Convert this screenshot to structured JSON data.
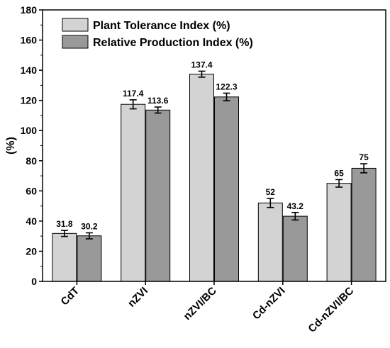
{
  "chart_data": {
    "type": "bar",
    "categories": [
      "CdT",
      "nZVI",
      "nZVI/BC",
      "Cd-nZVI",
      "Cd-nZVI/BC"
    ],
    "series": [
      {
        "name": "Plant Tolerance Index (%)",
        "color": "#d3d3d3",
        "values": [
          31.8,
          117.4,
          137.4,
          52,
          65
        ],
        "errors": [
          2,
          3,
          2,
          3,
          2.5
        ],
        "labels": [
          "31.8",
          "117.4",
          "137.4",
          "52",
          "65"
        ]
      },
      {
        "name": "Relative Production Index (%)",
        "color": "#999999",
        "values": [
          30.2,
          113.6,
          122.3,
          43.2,
          75
        ],
        "errors": [
          2,
          2,
          2.5,
          2.5,
          3
        ],
        "labels": [
          "30.2",
          "113.6",
          "122.3",
          "43.2",
          "75"
        ]
      }
    ],
    "ylabel": "(%)",
    "ylim": [
      0,
      180
    ],
    "yticks": [
      0,
      20,
      40,
      60,
      80,
      100,
      120,
      140,
      160,
      180
    ],
    "legend_position": "top-left",
    "grid": false
  }
}
